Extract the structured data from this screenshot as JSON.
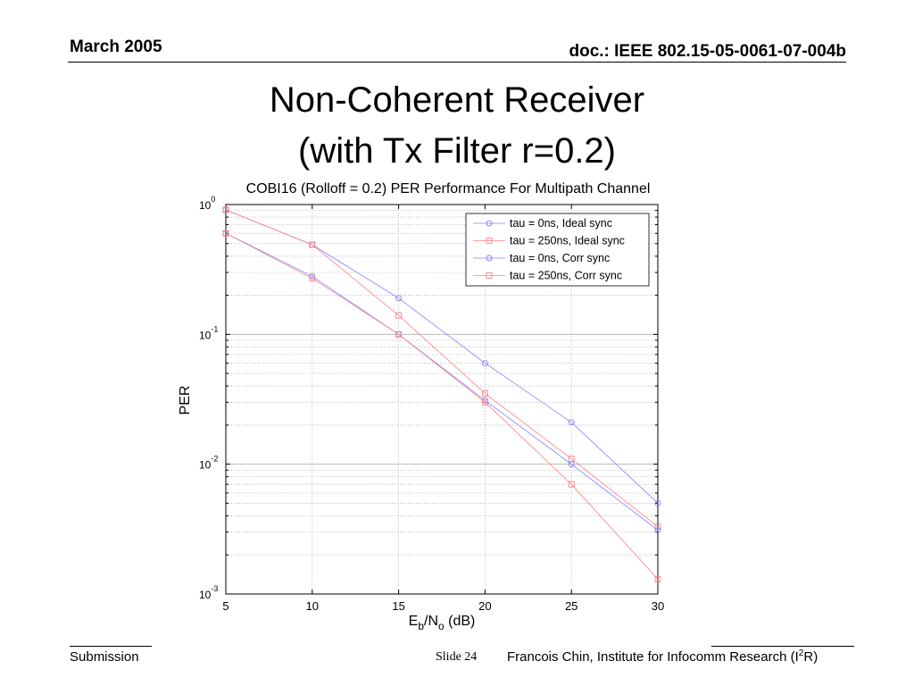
{
  "header": {
    "date": "March 2005",
    "doc": "doc.: IEEE 802.15-05-0061-07-004b"
  },
  "slide_title": {
    "line1": "Non-Coherent Receiver",
    "line2": "(with Tx Filter r=0.2)"
  },
  "footer": {
    "left": "Submission",
    "slide": "Slide 24",
    "author_pre": "Francois Chin, Institute for Infocomm Research (I",
    "author_sup": "2",
    "author_post": "R)"
  },
  "chart_data": {
    "type": "line",
    "title": "COBI16 (Rolloff = 0.2) PER Performance For Multipath Channel",
    "xlabel_main": "E",
    "xlabel_sub1": "b",
    "xlabel_mid": "/N",
    "xlabel_sub2": "o",
    "xlabel_unit": " (dB)",
    "ylabel": "PER",
    "yscale": "log",
    "xlim": [
      5,
      30
    ],
    "ylim": [
      0.001,
      1
    ],
    "xticks": [
      "5",
      "10",
      "15",
      "20",
      "25",
      "30"
    ],
    "yticks": [
      {
        "base": "10",
        "exp": "0",
        "value": 1
      },
      {
        "base": "10",
        "exp": "-1",
        "value": 0.1
      },
      {
        "base": "10",
        "exp": "-2",
        "value": 0.01
      },
      {
        "base": "10",
        "exp": "-3",
        "value": 0.001
      }
    ],
    "grid": true,
    "legend_position": "top-right",
    "x": [
      5,
      10,
      15,
      20,
      25,
      30
    ],
    "series": [
      {
        "name": "tau = 0ns, Ideal sync",
        "color": "#8080ff",
        "marker": "circle",
        "values": [
          0.91,
          0.49,
          0.19,
          0.06,
          0.021,
          0.005
        ]
      },
      {
        "name": "tau = 250ns, Ideal sync",
        "color": "#ff8080",
        "marker": "square",
        "values": [
          0.91,
          0.49,
          0.14,
          0.035,
          0.011,
          0.0033
        ]
      },
      {
        "name": "tau = 0ns, Corr sync",
        "color": "#8080ff",
        "marker": "circle",
        "values": [
          0.6,
          0.28,
          0.1,
          0.031,
          0.01,
          0.0031
        ]
      },
      {
        "name": "tau = 250ns, Corr sync",
        "color": "#ff8080",
        "marker": "square",
        "values": [
          0.6,
          0.27,
          0.1,
          0.03,
          0.007,
          0.0013
        ]
      }
    ]
  }
}
